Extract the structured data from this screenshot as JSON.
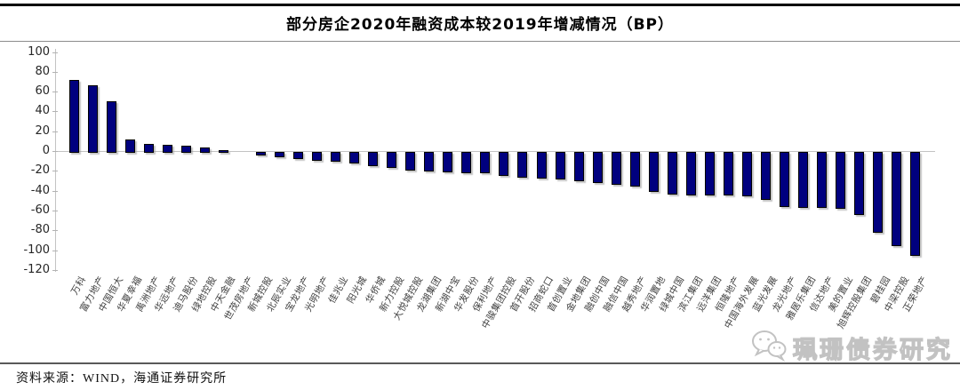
{
  "title": "部分房企2020年融资成本较2019年增减情况（BP）",
  "footer": {
    "source_label": "资料来源：WIND，海通证券研究所"
  },
  "watermark": {
    "text": "珮珊债券研究",
    "icon": "wechat-icon"
  },
  "colors": {
    "bar_fill": "#00007F",
    "bar_border": "#000000",
    "axis": "#c3c3c3",
    "title_text": "#000000",
    "tick_text": "#262626",
    "category_text": "#404040",
    "watermark": "#c2c2c2"
  },
  "chart_data": {
    "type": "bar",
    "title": "部分房企2020年融资成本较2019年增减情况（BP）",
    "xlabel": "",
    "ylabel": "",
    "unit": "BP",
    "ylim": [
      -120,
      100
    ],
    "ytick_step": 20,
    "grid": false,
    "legend": "none",
    "categories": [
      "万科",
      "富力地产",
      "中国恒大",
      "华夏幸福",
      "禹洲地产",
      "华远地产",
      "迪马股份",
      "绿地控股",
      "中天金融",
      "世茂房地产",
      "新城控股",
      "北辰实业",
      "宝龙地产",
      "光明地产",
      "佳兆业",
      "阳光城",
      "华侨城",
      "新力控股",
      "大悦城控股",
      "龙湖集团",
      "新湖中宝",
      "华发股份",
      "保利地产",
      "中骏集团控股",
      "首开股份",
      "招商蛇口",
      "首创置业",
      "金地集团",
      "融创中国",
      "融信中国",
      "越秀地产",
      "华润置地",
      "绿城中国",
      "滨江集团",
      "远洋集团",
      "恒隆地产",
      "中国海外发展",
      "蓝光发展",
      "龙光地产",
      "雅居乐集团",
      "信达地产",
      "美的置业",
      "旭辉控股集团",
      "碧桂园",
      "中梁控股",
      "正荣地产"
    ],
    "values": [
      72,
      66,
      50,
      12,
      7,
      6,
      5,
      4,
      1,
      0,
      -2,
      -4,
      -5,
      -7,
      -8,
      -10,
      -13,
      -14,
      -17,
      -18,
      -19,
      -20,
      -20,
      -22,
      -24,
      -25,
      -26,
      -28,
      -30,
      -31,
      -33,
      -39,
      -41,
      -42,
      -42,
      -42,
      -43,
      -47,
      -54,
      -55,
      -55,
      -56,
      -62,
      -80,
      -93,
      -103
    ]
  }
}
